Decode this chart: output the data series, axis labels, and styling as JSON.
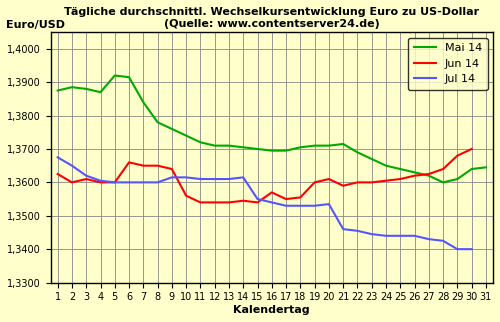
{
  "title_line1": "Tägliche durchschnittl. Wechselkursentwicklung Euro zu US-Dollar",
  "title_line2": "(Quelle: www.contentserver24.de)",
  "ylabel": "Euro/USD",
  "xlabel": "Kalendertag",
  "background_color": "#FFFFCC",
  "ylim": [
    1.33,
    1.405
  ],
  "yticks": [
    1.33,
    1.34,
    1.35,
    1.36,
    1.37,
    1.38,
    1.39,
    1.4
  ],
  "ytick_labels": [
    "1,3300",
    "1,3400",
    "1,3500",
    "1,3600",
    "1,3700",
    "1,3800",
    "1,3900",
    "1,4000"
  ],
  "xlim": [
    0.5,
    31.5
  ],
  "xticks": [
    1,
    2,
    3,
    4,
    5,
    6,
    7,
    8,
    9,
    10,
    11,
    12,
    13,
    14,
    15,
    16,
    17,
    18,
    19,
    20,
    21,
    22,
    23,
    24,
    25,
    26,
    27,
    28,
    29,
    30,
    31
  ],
  "mai14": [
    1.3875,
    1.3885,
    1.388,
    1.387,
    1.392,
    1.3915,
    1.384,
    1.378,
    1.376,
    1.374,
    1.372,
    1.371,
    1.371,
    1.3705,
    1.37,
    1.3695,
    1.3695,
    1.3705,
    1.371,
    1.371,
    1.3715,
    1.369,
    1.367,
    1.365,
    1.364,
    1.363,
    1.362,
    1.36,
    1.361,
    1.364,
    1.3645
  ],
  "jun14": [
    1.3625,
    1.36,
    1.361,
    1.36,
    1.36,
    1.366,
    1.365,
    1.365,
    1.364,
    1.356,
    1.354,
    1.354,
    1.354,
    1.3545,
    1.354,
    1.357,
    1.355,
    1.3555,
    1.36,
    1.361,
    1.359,
    1.36,
    1.36,
    1.3605,
    1.361,
    1.362,
    1.3625,
    1.364,
    1.368,
    1.37,
    null
  ],
  "jul14": [
    1.3675,
    1.365,
    1.362,
    1.3605,
    1.36,
    1.36,
    1.36,
    1.36,
    1.3615,
    1.3615,
    1.361,
    1.361,
    1.361,
    1.3615,
    1.355,
    1.354,
    1.353,
    1.353,
    1.353,
    1.3535,
    1.346,
    1.3455,
    1.3445,
    1.344,
    1.344,
    1.344,
    1.343,
    1.3425,
    1.34,
    1.34,
    null
  ],
  "mai_color": "#00AA00",
  "jun_color": "#FF0000",
  "jul_color": "#5555FF",
  "line_width": 1.5,
  "grid_color": "#888888",
  "title_fontsize": 8,
  "axis_label_fontsize": 8,
  "tick_fontsize": 7,
  "legend_fontsize": 8
}
